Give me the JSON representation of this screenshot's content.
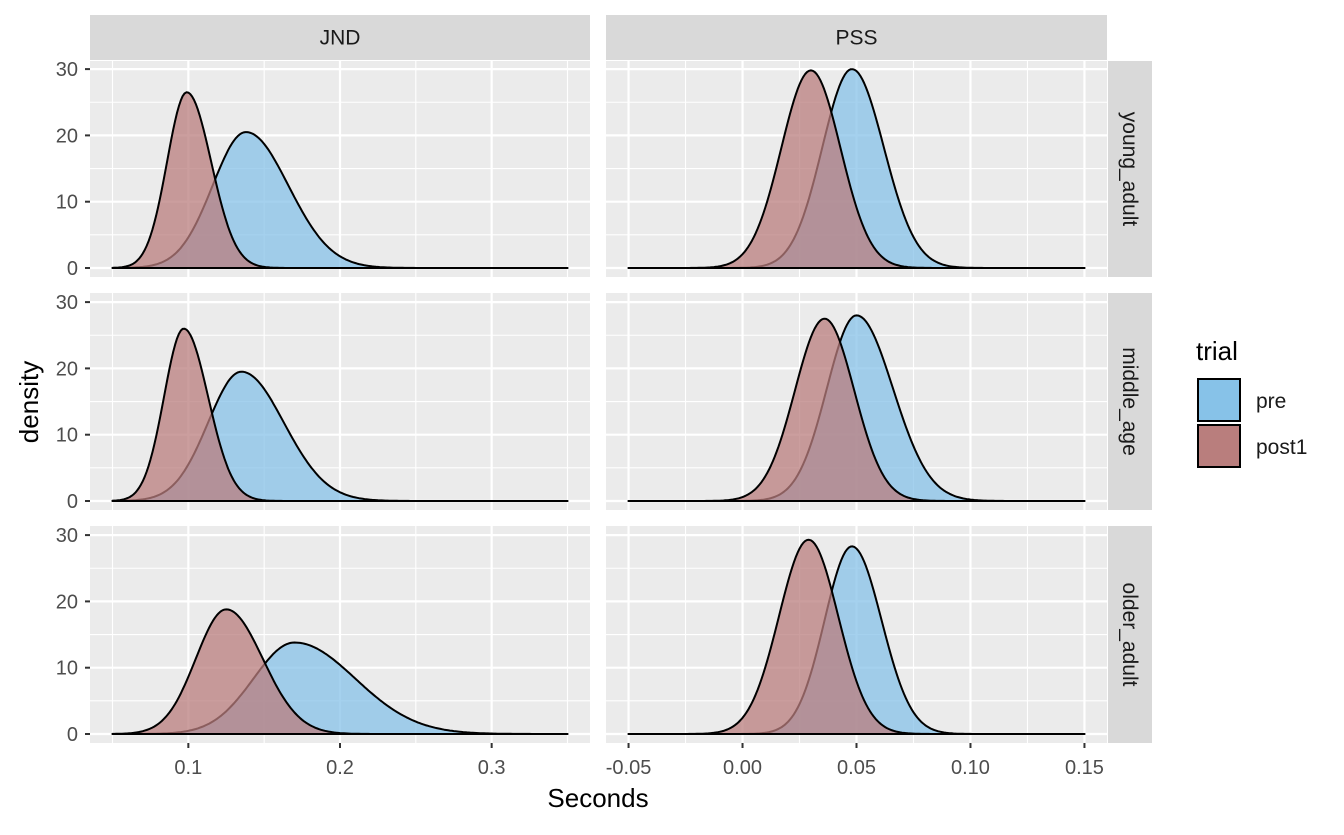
{
  "chart_data": {
    "type": "area",
    "subtype": "faceted-density",
    "facet_columns": [
      "JND",
      "PSS"
    ],
    "facet_rows": [
      "young_adult",
      "middle_age",
      "older_adult"
    ],
    "xlabel": "Seconds",
    "ylabel": "density",
    "ylim": [
      0,
      30
    ],
    "y_ticks": [
      0,
      10,
      20,
      30
    ],
    "x_axes": {
      "JND": {
        "xlim": [
          0.05,
          0.35
        ],
        "ticks": [
          0.1,
          0.2,
          0.3
        ],
        "tick_labels": [
          "0.1",
          "0.2",
          "0.3"
        ]
      },
      "PSS": {
        "xlim": [
          -0.05,
          0.15
        ],
        "ticks": [
          -0.05,
          0.0,
          0.05,
          0.1,
          0.15
        ],
        "tick_labels": [
          "-0.05",
          "0.00",
          "0.05",
          "0.10",
          "0.15"
        ]
      }
    },
    "grid": true,
    "legend": {
      "title": "trial",
      "position": "right",
      "entries": [
        {
          "label": "pre",
          "color": "#87c2e8"
        },
        {
          "label": "post1",
          "color": "#b97e7d"
        }
      ]
    },
    "colors": {
      "panel_bg": "#ebebeb",
      "strip_bg": "#d9d9d9",
      "grid_major": "#ffffff",
      "pre": "#87c2e8",
      "post1": "#b97e7d"
    },
    "series": [
      {
        "name": "pre",
        "facet_col": "JND",
        "facet_row": "young_adult",
        "peak_x": 0.138,
        "peak_y": 20.5,
        "sd_left": 0.022,
        "sd_right": 0.028
      },
      {
        "name": "post1",
        "facet_col": "JND",
        "facet_row": "young_adult",
        "peak_x": 0.099,
        "peak_y": 26.5,
        "sd_left": 0.013,
        "sd_right": 0.016
      },
      {
        "name": "pre",
        "facet_col": "JND",
        "facet_row": "middle_age",
        "peak_x": 0.135,
        "peak_y": 19.5,
        "sd_left": 0.022,
        "sd_right": 0.028
      },
      {
        "name": "post1",
        "facet_col": "JND",
        "facet_row": "middle_age",
        "peak_x": 0.097,
        "peak_y": 26.0,
        "sd_left": 0.013,
        "sd_right": 0.016
      },
      {
        "name": "pre",
        "facet_col": "JND",
        "facet_row": "older_adult",
        "peak_x": 0.17,
        "peak_y": 13.8,
        "sd_left": 0.027,
        "sd_right": 0.04
      },
      {
        "name": "post1",
        "facet_col": "JND",
        "facet_row": "older_adult",
        "peak_x": 0.125,
        "peak_y": 18.8,
        "sd_left": 0.02,
        "sd_right": 0.024
      },
      {
        "name": "pre",
        "facet_col": "PSS",
        "facet_row": "young_adult",
        "peak_x": 0.048,
        "peak_y": 30.0,
        "sd_left": 0.013,
        "sd_right": 0.014
      },
      {
        "name": "post1",
        "facet_col": "PSS",
        "facet_row": "young_adult",
        "peak_x": 0.03,
        "peak_y": 29.8,
        "sd_left": 0.013,
        "sd_right": 0.013
      },
      {
        "name": "pre",
        "facet_col": "PSS",
        "facet_row": "middle_age",
        "peak_x": 0.05,
        "peak_y": 28.0,
        "sd_left": 0.013,
        "sd_right": 0.016
      },
      {
        "name": "post1",
        "facet_col": "PSS",
        "facet_row": "middle_age",
        "peak_x": 0.036,
        "peak_y": 27.5,
        "sd_left": 0.013,
        "sd_right": 0.013
      },
      {
        "name": "pre",
        "facet_col": "PSS",
        "facet_row": "older_adult",
        "peak_x": 0.048,
        "peak_y": 28.3,
        "sd_left": 0.012,
        "sd_right": 0.013
      },
      {
        "name": "post1",
        "facet_col": "PSS",
        "facet_row": "older_adult",
        "peak_x": 0.029,
        "peak_y": 29.3,
        "sd_left": 0.013,
        "sd_right": 0.013
      }
    ]
  }
}
